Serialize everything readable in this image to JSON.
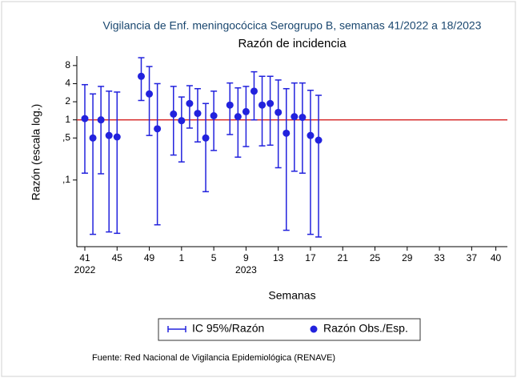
{
  "chart_data": {
    "type": "errorbar",
    "title": "Vigilancia de Enf. meningocócica Serogrupo B, semanas 41/2022 a 18/2023",
    "subtitle": "Razón de incidencia",
    "y_label": "Razón (escala log.)",
    "x_label": "Semanas",
    "source": "Fuente: Red Nacional de Vigilancia Epidemiológica (RENAVE)",
    "categories": [
      "41",
      null,
      null,
      null,
      "45",
      null,
      null,
      null,
      "49",
      null,
      null,
      null,
      "1",
      null,
      null,
      null,
      "5",
      null,
      null,
      null,
      "9",
      null,
      null,
      null,
      "13",
      null,
      null,
      null,
      "17",
      null,
      null,
      null,
      "21",
      null,
      null,
      null,
      "25",
      null,
      null,
      null,
      "29",
      null,
      null,
      null,
      "33",
      null,
      null,
      null,
      "37",
      null,
      null,
      "40"
    ],
    "year_labels": [
      {
        "category": "41",
        "label": "2022"
      },
      {
        "category": "9",
        "label": "2023"
      }
    ],
    "series": [
      {
        "name": "IC 95%/Razón",
        "color": "#2222dd",
        "low": [
          0.13,
          0.0125,
          0.127,
          0.0137,
          0.013,
          null,
          null,
          2.1,
          0.55,
          0.018,
          null,
          0.26,
          0.2,
          0.73,
          0.43,
          0.064,
          0.31,
          null,
          0.57,
          0.24,
          0.36,
          1.0,
          0.37,
          0.38,
          0.16,
          0.0146,
          0.14,
          0.13,
          0.0125,
          0.0113,
          null,
          null,
          null,
          null,
          null,
          null,
          null,
          null,
          null,
          null,
          null,
          null,
          null,
          null,
          null,
          null,
          null,
          null,
          null,
          null,
          null,
          null
        ],
        "high": [
          3.85,
          2.7,
          3.6,
          3.0,
          2.9,
          null,
          null,
          10.8,
          7.7,
          4.0,
          null,
          3.6,
          2.4,
          3.7,
          3.3,
          1.87,
          3.0,
          null,
          4.1,
          3.4,
          3.6,
          6.3,
          5.3,
          5.3,
          4.6,
          3.3,
          4.1,
          4.1,
          3.1,
          2.56,
          null,
          null,
          null,
          null,
          null,
          null,
          null,
          null,
          null,
          null,
          null,
          null,
          null,
          null,
          null,
          null,
          null,
          null,
          null,
          null,
          null,
          null
        ]
      },
      {
        "name": "Razón Obs./Esp.",
        "color": "#2222dd",
        "values": [
          1.05,
          0.5,
          1.0,
          0.55,
          0.52,
          null,
          null,
          5.3,
          2.7,
          0.71,
          null,
          1.25,
          0.97,
          1.87,
          1.28,
          0.5,
          1.17,
          null,
          1.76,
          1.13,
          1.37,
          3.0,
          1.76,
          1.87,
          1.33,
          0.6,
          1.13,
          1.1,
          0.55,
          0.46,
          null,
          null,
          null,
          null,
          null,
          null,
          null,
          null,
          null,
          null,
          null,
          null,
          null,
          null,
          null,
          null,
          null,
          null,
          null,
          null,
          null,
          null
        ]
      }
    ],
    "ylim": [
      0.0078,
      11.5
    ],
    "log_y": true,
    "yticks": [
      8,
      4,
      2,
      1,
      {
        "value": 0.5,
        "label": ",5"
      },
      {
        "value": 0.1,
        "label": ",1"
      }
    ],
    "refline": 1,
    "refline_color": "#d42020"
  }
}
